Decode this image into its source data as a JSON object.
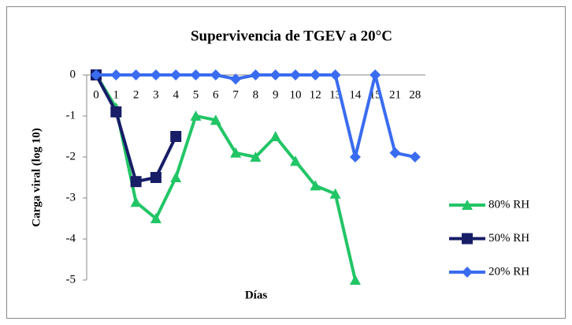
{
  "chart_data": {
    "type": "line",
    "title": "Supervivencia de TGEV a 20°C",
    "x_label": "Días",
    "y_label": "Carga viral (log 10)",
    "categories": [
      "0",
      "1",
      "2",
      "3",
      "4",
      "5",
      "6",
      "7",
      "8",
      "9",
      "10",
      "12",
      "13",
      "14",
      "15",
      "21",
      "28"
    ],
    "series": [
      {
        "name": "80% RH",
        "color": "#22c566",
        "marker": "triangle",
        "values": [
          0,
          -0.8,
          -3.1,
          -3.5,
          -2.5,
          -1.0,
          -1.1,
          -1.9,
          -2.0,
          -1.5,
          -2.1,
          -2.7,
          -2.9,
          -5,
          null,
          null,
          null
        ]
      },
      {
        "name": "50% RH",
        "color": "#171d66",
        "marker": "square",
        "values": [
          0,
          -0.9,
          -2.6,
          -2.5,
          -1.5,
          null,
          null,
          null,
          null,
          null,
          null,
          null,
          null,
          null,
          null,
          null,
          null
        ]
      },
      {
        "name": "20% RH",
        "color": "#3a6cf0",
        "marker": "diamond",
        "values": [
          0,
          0,
          0,
          0,
          0,
          0,
          0,
          -0.1,
          0,
          0,
          0,
          0,
          0,
          -2,
          0,
          -1.9,
          -2.0
        ]
      }
    ],
    "ylim": [
      -5,
      0
    ],
    "yticks": [
      0,
      -1,
      -2,
      -3,
      -4,
      -5
    ],
    "legend": "right"
  }
}
